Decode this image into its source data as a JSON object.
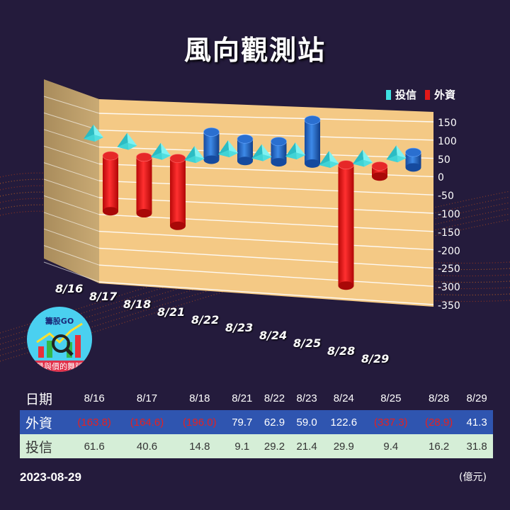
{
  "title": "風向觀測站",
  "legend": {
    "trust": "投信",
    "foreign": "外資"
  },
  "colors": {
    "foreign": "#e21818",
    "foreign_pos": "#1f5ec2",
    "trust": "#3ee0e0",
    "panel": "#f4c985",
    "background": "#241b3c"
  },
  "logo": {
    "top": "籌股GO",
    "bottom": "量與價的舞蹈"
  },
  "table": {
    "row_date_label": "日期",
    "row_foreign_label": "外資",
    "row_trust_label": "投信",
    "dates": [
      "8/16",
      "8/17",
      "8/18",
      "8/21",
      "8/22",
      "8/23",
      "8/24",
      "8/25",
      "8/28",
      "8/29"
    ],
    "foreign": [
      "(163.8)",
      "(164.6)",
      "(196.0)",
      "79.7",
      "62.9",
      "59.0",
      "122.6",
      "(337.3)",
      "(28.9)",
      "41.3"
    ],
    "trust": [
      "61.6",
      "40.6",
      "14.8",
      "9.1",
      "29.2",
      "21.4",
      "29.9",
      "9.4",
      "16.2",
      "31.8"
    ]
  },
  "footer": {
    "date": "2023-08-29",
    "unit": "(億元)"
  },
  "chart_data": {
    "type": "bar",
    "categories": [
      "8/16",
      "8/17",
      "8/18",
      "8/21",
      "8/22",
      "8/23",
      "8/24",
      "8/25",
      "8/28",
      "8/29"
    ],
    "series": [
      {
        "name": "外資",
        "values": [
          -163.8,
          -164.6,
          -196.0,
          79.7,
          62.9,
          59.0,
          122.6,
          -337.3,
          -28.9,
          41.3
        ]
      },
      {
        "name": "投信",
        "values": [
          61.6,
          40.6,
          14.8,
          9.1,
          29.2,
          21.4,
          29.9,
          9.4,
          16.2,
          31.8
        ]
      }
    ],
    "yticks": [
      "150",
      "100",
      "50",
      "0",
      "-50",
      "-100",
      "-150",
      "-200",
      "-250",
      "-300",
      "-350"
    ],
    "ylim": [
      -350,
      150
    ],
    "legend": "top-right",
    "grid": true
  }
}
